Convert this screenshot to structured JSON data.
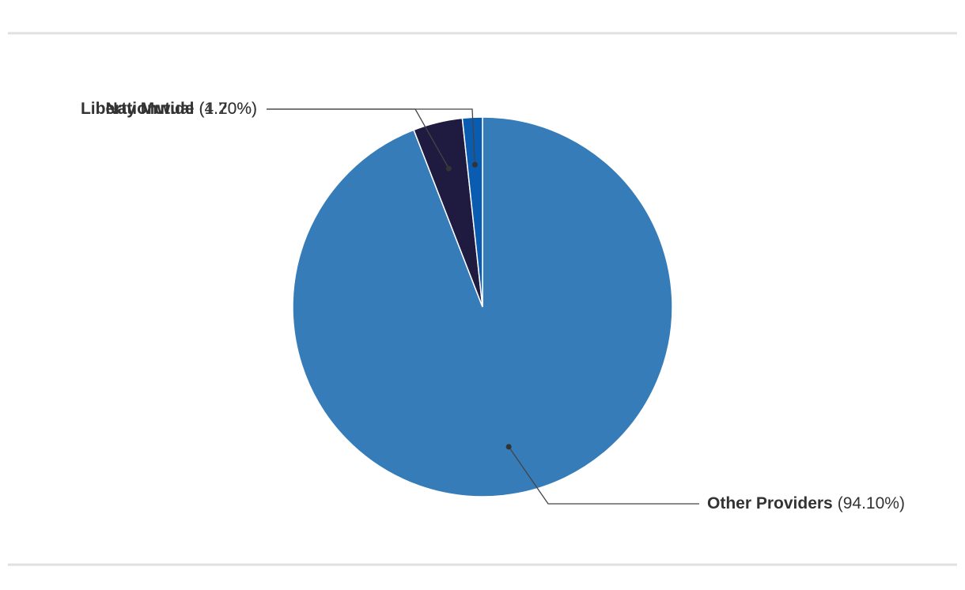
{
  "chart_data": {
    "type": "pie",
    "categories": [
      "Other Providers",
      "Liberty Mutual",
      "Nationwide"
    ],
    "values": [
      94.1,
      4.2,
      1.7
    ],
    "value_labels": [
      "(94.10%)",
      "(4.20%)",
      "(1.70%)"
    ],
    "colors": [
      "#357cb9",
      "#1f1a40",
      "#0a5cb0"
    ]
  }
}
